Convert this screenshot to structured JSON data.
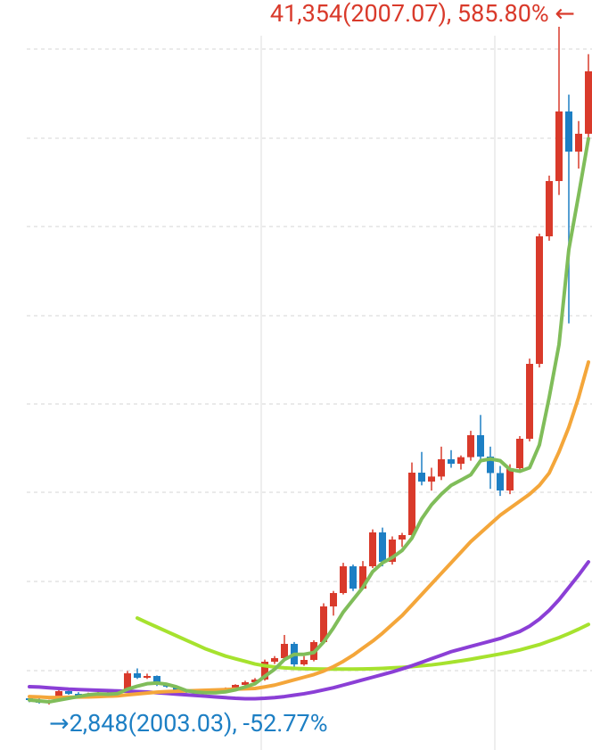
{
  "chart_data": {
    "type": "candlestick",
    "annotations": {
      "high": "41,354(2007.07), 585.80% ←",
      "low": "→2,848(2003.03), -52.77%"
    },
    "ylim": [
      264,
      42877
    ],
    "up_color": "#d93a2b",
    "down_color": "#1d7fc4",
    "open": [
      3200,
      3101,
      2949,
      3101,
      3608,
      3456,
      3355,
      3456,
      3456,
      3456,
      3608,
      4621,
      4368,
      4470,
      3963,
      3861,
      3608,
      3557,
      3456,
      3557,
      3557,
      3760,
      3963,
      4115,
      4267,
      5280,
      5483,
      6294,
      5128,
      5382,
      6395,
      8422,
      9182,
      10702,
      9435,
      10702,
      12627,
      10955,
      12222,
      12475,
      16022,
      15515,
      15800,
      16782,
      16529,
      16900,
      18150,
      16934,
      16000,
      15009,
      16275,
      17948,
      22204,
      29450,
      32590,
      36543,
      34263,
      35277
    ],
    "high": [
      3300,
      3180,
      3120,
      3700,
      3700,
      3550,
      3520,
      3560,
      3600,
      3700,
      4750,
      4900,
      4600,
      4500,
      4050,
      3900,
      3700,
      3600,
      3650,
      3700,
      3820,
      4000,
      4200,
      4350,
      5400,
      5600,
      6800,
      6400,
      5600,
      6500,
      8600,
      9300,
      10900,
      10800,
      11000,
      12800,
      12900,
      12400,
      12600,
      16600,
      17200,
      16300,
      17500,
      17300,
      17000,
      18400,
      19300,
      17500,
      16400,
      16500,
      18100,
      22500,
      29600,
      32900,
      41354,
      37500,
      36000,
      39800
    ],
    "low": [
      2980,
      2900,
      2848,
      3050,
      3400,
      3300,
      3300,
      3400,
      3380,
      3400,
      3560,
      4300,
      4300,
      3900,
      3800,
      3550,
      3500,
      3400,
      3420,
      3500,
      3520,
      3700,
      3900,
      4050,
      4200,
      5150,
      5400,
      5000,
      5050,
      5300,
      6300,
      7900,
      9100,
      9300,
      9400,
      10600,
      10700,
      10800,
      11800,
      12300,
      15300,
      15000,
      15600,
      16300,
      16200,
      16700,
      16800,
      15100,
      14700,
      14800,
      16100,
      17800,
      22000,
      29200,
      31800,
      24500,
      33300,
      35000
    ],
    "close": [
      3101,
      2949,
      3101,
      3608,
      3456,
      3355,
      3456,
      3456,
      3456,
      3608,
      4621,
      4368,
      4470,
      3963,
      3861,
      3608,
      3557,
      3456,
      3557,
      3557,
      3760,
      3963,
      4115,
      4267,
      5280,
      5483,
      6294,
      5128,
      5382,
      6395,
      8422,
      9182,
      10702,
      9435,
      10702,
      12627,
      10955,
      12222,
      12475,
      16022,
      15515,
      15800,
      16782,
      16529,
      16900,
      18150,
      16934,
      16000,
      15009,
      16275,
      17948,
      22204,
      29450,
      32590,
      36543,
      34263,
      35277,
      38824
    ],
    "series": [
      {
        "color": "#a6e22e",
        "values": [
          null,
          null,
          null,
          null,
          null,
          null,
          null,
          null,
          null,
          null,
          null,
          7760,
          7500,
          7250,
          7000,
          6750,
          6500,
          6250,
          6000,
          5800,
          5600,
          5450,
          5300,
          5150,
          5050,
          4980,
          4930,
          4900,
          4880,
          4870,
          4860,
          4860,
          4860,
          4860,
          4870,
          4880,
          4900,
          4930,
          4960,
          5000,
          5050,
          5100,
          5170,
          5250,
          5330,
          5420,
          5520,
          5620,
          5720,
          5830,
          5950,
          6100,
          6250,
          6450,
          6650,
          6880,
          7130,
          7400
        ]
      },
      {
        "color": "#8b3fd6",
        "values": [
          3860,
          3840,
          3800,
          3760,
          3720,
          3700,
          3680,
          3660,
          3640,
          3620,
          3600,
          3580,
          3560,
          3520,
          3480,
          3440,
          3400,
          3360,
          3320,
          3280,
          3240,
          3200,
          3180,
          3180,
          3200,
          3240,
          3300,
          3380,
          3460,
          3560,
          3680,
          3800,
          3950,
          4100,
          4250,
          4400,
          4550,
          4700,
          4870,
          5050,
          5250,
          5450,
          5650,
          5850,
          6000,
          6150,
          6300,
          6450,
          6600,
          6800,
          7000,
          7300,
          7700,
          8200,
          8800,
          9500,
          10200,
          10950
        ]
      },
      {
        "color": "#f4a63a",
        "values": [
          3300,
          3280,
          3250,
          3250,
          3260,
          3270,
          3280,
          3300,
          3320,
          3340,
          3400,
          3450,
          3500,
          3550,
          3580,
          3600,
          3620,
          3640,
          3660,
          3680,
          3700,
          3720,
          3740,
          3760,
          3850,
          3950,
          4100,
          4250,
          4400,
          4550,
          4750,
          5000,
          5300,
          5650,
          6050,
          6450,
          6900,
          7400,
          7900,
          8500,
          9100,
          9700,
          10300,
          10900,
          11500,
          12100,
          12600,
          13100,
          13600,
          14000,
          14400,
          14800,
          15300,
          16000,
          17200,
          18600,
          20300,
          22300
        ]
      },
      {
        "color": "#80bd5a",
        "values": [
          3100,
          3050,
          3000,
          3100,
          3200,
          3300,
          3400,
          3450,
          3430,
          3470,
          3720,
          3890,
          4030,
          4070,
          4000,
          3850,
          3640,
          3550,
          3520,
          3520,
          3570,
          3680,
          3850,
          4030,
          4450,
          4850,
          5400,
          5700,
          5700,
          5800,
          6400,
          7200,
          8100,
          8800,
          9500,
          10400,
          10900,
          11200,
          11600,
          12300,
          13400,
          14200,
          14800,
          15300,
          15600,
          15900,
          16700,
          16800,
          16700,
          16200,
          16100,
          16300,
          17600,
          20300,
          23300,
          28700,
          31800,
          35000
        ]
      }
    ]
  }
}
